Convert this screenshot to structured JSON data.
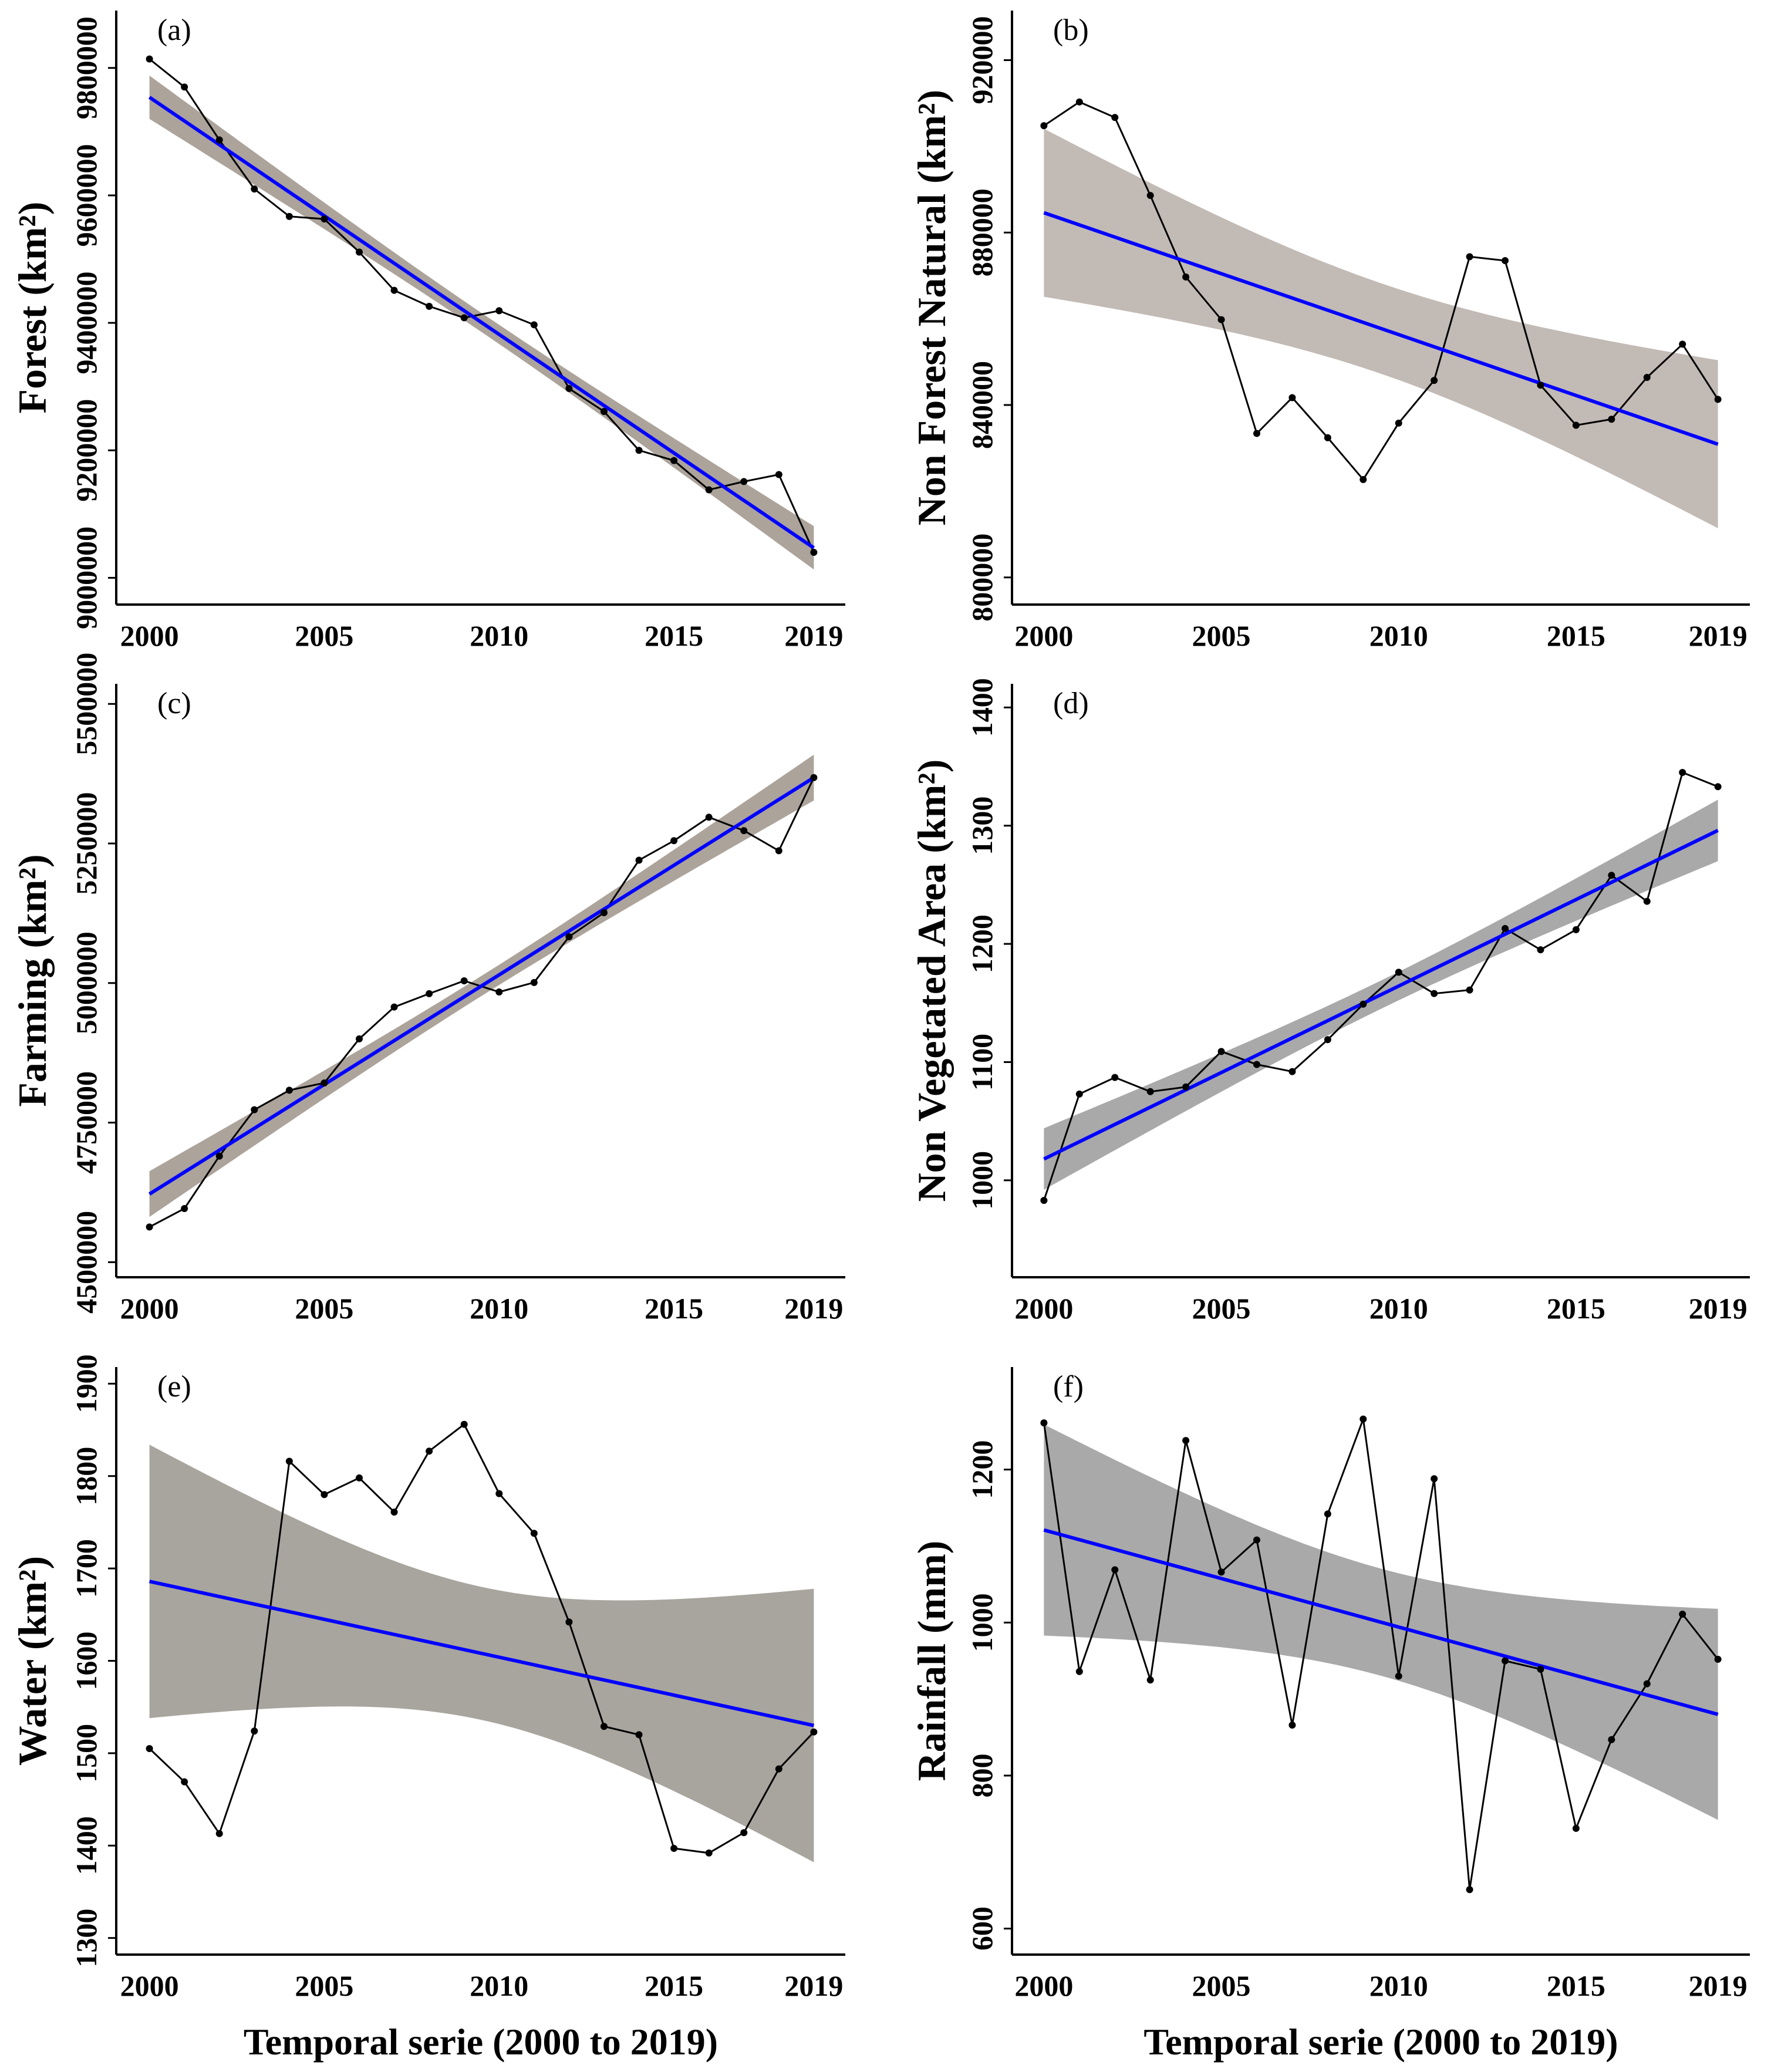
{
  "chart_data": [
    {
      "id": "a",
      "type": "line",
      "panel_label": "(a)",
      "ylabel": "Forest (km²)",
      "xlabel": "",
      "x": [
        2000,
        2001,
        2002,
        2003,
        2004,
        2005,
        2006,
        2007,
        2008,
        2009,
        2010,
        2011,
        2012,
        2013,
        2014,
        2015,
        2016,
        2017,
        2018,
        2019
      ],
      "values": [
        9814000,
        9770000,
        9687000,
        9610000,
        9567000,
        9563000,
        9511000,
        9451000,
        9426000,
        9408000,
        9419000,
        9397000,
        9297000,
        9261000,
        9200000,
        9184000,
        9138000,
        9151000,
        9162000,
        9040000
      ],
      "trend": {
        "start": 9754000,
        "end": 9047000,
        "ci_half_center": 15000,
        "ci_half_end": 34000
      },
      "yticks": [
        9000000,
        9200000,
        9400000,
        9600000,
        9800000
      ],
      "ytick_labels": [
        "9000000",
        "9200000",
        "9400000",
        "9600000",
        "9800000"
      ],
      "xticks": [
        2000,
        2005,
        2010,
        2015,
        2019
      ],
      "xtick_labels": [
        "2000",
        "2005",
        "2010",
        "2015",
        "2019"
      ],
      "xlim": [
        1999.05,
        2019.9
      ],
      "ylim": [
        8958000,
        9890000
      ],
      "band_color": "#aca39b"
    },
    {
      "id": "b",
      "type": "line",
      "panel_label": "(b)",
      "ylabel": "Non Forest Natural (km²)",
      "xlabel": "",
      "x": [
        2000,
        2001,
        2002,
        2003,
        2004,
        2005,
        2006,
        2007,
        2008,
        2009,
        2010,
        2011,
        2012,
        2013,
        2014,
        2015,
        2016,
        2017,
        2018,
        2019
      ],
      "values": [
        904800,
        910300,
        906700,
        888600,
        869700,
        859800,
        833400,
        841700,
        832400,
        822700,
        835800,
        845700,
        874400,
        873500,
        844600,
        835300,
        836700,
        846400,
        854100,
        841300
      ],
      "trend": {
        "start": 884600,
        "end": 830900,
        "ci_half_center": 10500,
        "ci_half_end": 19500
      },
      "yticks": [
        800000,
        840000,
        880000,
        920000
      ],
      "ytick_labels": [
        "800000",
        "840000",
        "880000",
        "920000"
      ],
      "xticks": [
        2000,
        2005,
        2010,
        2015,
        2019
      ],
      "xtick_labels": [
        "2000",
        "2005",
        "2010",
        "2015",
        "2019"
      ],
      "xlim": [
        1999.1,
        2019.9
      ],
      "ylim": [
        793700,
        931500
      ],
      "band_color": "#c2bab5"
    },
    {
      "id": "c",
      "type": "line",
      "panel_label": "(c)",
      "ylabel": "Farming (km²)",
      "xlabel": "",
      "x": [
        2000,
        2001,
        2002,
        2003,
        2004,
        2005,
        2006,
        2007,
        2008,
        2009,
        2010,
        2011,
        2012,
        2013,
        2014,
        2015,
        2016,
        2017,
        2018,
        2019
      ],
      "values": [
        4563000,
        4596000,
        4690000,
        4773000,
        4808000,
        4821000,
        4900000,
        4957000,
        4981000,
        5004000,
        4984000,
        5001000,
        5083000,
        5126000,
        5220000,
        5255000,
        5297000,
        5273000,
        5237000,
        5368000
      ],
      "trend": {
        "start": 4622000,
        "end": 5368000,
        "ci_half_center": 18000,
        "ci_half_end": 41000
      },
      "yticks": [
        4500000,
        4750000,
        5000000,
        5250000,
        5500000
      ],
      "ytick_labels": [
        "4500000",
        "4750000",
        "5000000",
        "5250000",
        "5500000"
      ],
      "xticks": [
        2000,
        2005,
        2010,
        2015,
        2019
      ],
      "xtick_labels": [
        "2000",
        "2005",
        "2010",
        "2015",
        "2019"
      ],
      "xlim": [
        1999.05,
        2019.9
      ],
      "ylim": [
        4473000,
        5536000
      ],
      "band_color": "#aca39b"
    },
    {
      "id": "d",
      "type": "line",
      "panel_label": "(d)",
      "ylabel": "Non Vegetated Area (km²)",
      "xlabel": "",
      "x": [
        2000,
        2001,
        2002,
        2003,
        2004,
        2005,
        2006,
        2007,
        2008,
        2009,
        2010,
        2011,
        2012,
        2013,
        2014,
        2015,
        2016,
        2017,
        2018,
        2019
      ],
      "values": [
        983,
        1073,
        1087,
        1075,
        1079,
        1109,
        1098,
        1092,
        1119,
        1149,
        1176,
        1158,
        1161,
        1213,
        1195,
        1212,
        1258,
        1236,
        1345,
        1333
      ],
      "trend": {
        "start": 1018,
        "end": 1296,
        "ci_half_center": 12,
        "ci_half_end": 26
      },
      "yticks": [
        1000,
        1100,
        1200,
        1300,
        1400
      ],
      "ytick_labels": [
        "1000",
        "1100",
        "1200",
        "1300",
        "1400"
      ],
      "xticks": [
        2000,
        2005,
        2010,
        2015,
        2019
      ],
      "xtick_labels": [
        "2000",
        "2005",
        "2010",
        "2015",
        "2019"
      ],
      "xlim": [
        1999.1,
        2019.9
      ],
      "ylim": [
        918,
        1420
      ],
      "band_color": "#a9a9a9"
    },
    {
      "id": "e",
      "type": "line",
      "panel_label": "(e)",
      "ylabel": "Water (km²)",
      "xlabel": "Temporal serie (2000 to 2019)",
      "x": [
        2000,
        2001,
        2002,
        2003,
        2004,
        2005,
        2006,
        2007,
        2008,
        2009,
        2010,
        2011,
        2012,
        2013,
        2014,
        2015,
        2016,
        2017,
        2018,
        2019
      ],
      "values": [
        1505,
        1469,
        1413,
        1524,
        1816,
        1780,
        1798,
        1761,
        1827,
        1856,
        1781,
        1738,
        1642,
        1529,
        1520,
        1397,
        1392,
        1414,
        1483,
        1523
      ],
      "trend": {
        "start": 1686,
        "end": 1530,
        "ci_half_center": 72,
        "ci_half_end": 148
      },
      "yticks": [
        1300,
        1400,
        1500,
        1600,
        1700,
        1800,
        1900
      ],
      "ytick_labels": [
        "1300",
        "1400",
        "1500",
        "1600",
        "1700",
        "1800",
        "1900"
      ],
      "xticks": [
        2000,
        2005,
        2010,
        2015,
        2019
      ],
      "xtick_labels": [
        "2000",
        "2005",
        "2010",
        "2015",
        "2019"
      ],
      "xlim": [
        1999.05,
        2019.9
      ],
      "ylim": [
        1282,
        1918
      ],
      "band_color": "#a8a59e"
    },
    {
      "id": "f",
      "type": "line",
      "panel_label": "(f)",
      "ylabel": "Rainfall (mm)",
      "xlabel": "Temporal serie (2000 to 2019)",
      "x": [
        2000,
        2001,
        2002,
        2003,
        2004,
        2005,
        2006,
        2007,
        2008,
        2009,
        2010,
        2011,
        2012,
        2013,
        2014,
        2015,
        2016,
        2017,
        2018,
        2019
      ],
      "values": [
        1261,
        936,
        1069,
        925,
        1238,
        1066,
        1108,
        866,
        1142,
        1266,
        930,
        1188,
        651,
        950,
        939,
        731,
        847,
        920,
        1011,
        952
      ],
      "trend": {
        "start": 1121,
        "end": 880,
        "ci_half_center": 70,
        "ci_half_end": 138
      },
      "yticks": [
        600,
        800,
        1000,
        1200
      ],
      "ytick_labels": [
        "600",
        "800",
        "1000",
        "1200"
      ],
      "xticks": [
        2000,
        2005,
        2010,
        2015,
        2019
      ],
      "xtick_labels": [
        "2000",
        "2005",
        "2010",
        "2015",
        "2019"
      ],
      "xlim": [
        1999.1,
        2019.9
      ],
      "ylim": [
        566,
        1334
      ],
      "band_color": "#a9a9a9"
    }
  ],
  "colors": {
    "trend": "#0000ff",
    "series": "#000000"
  }
}
